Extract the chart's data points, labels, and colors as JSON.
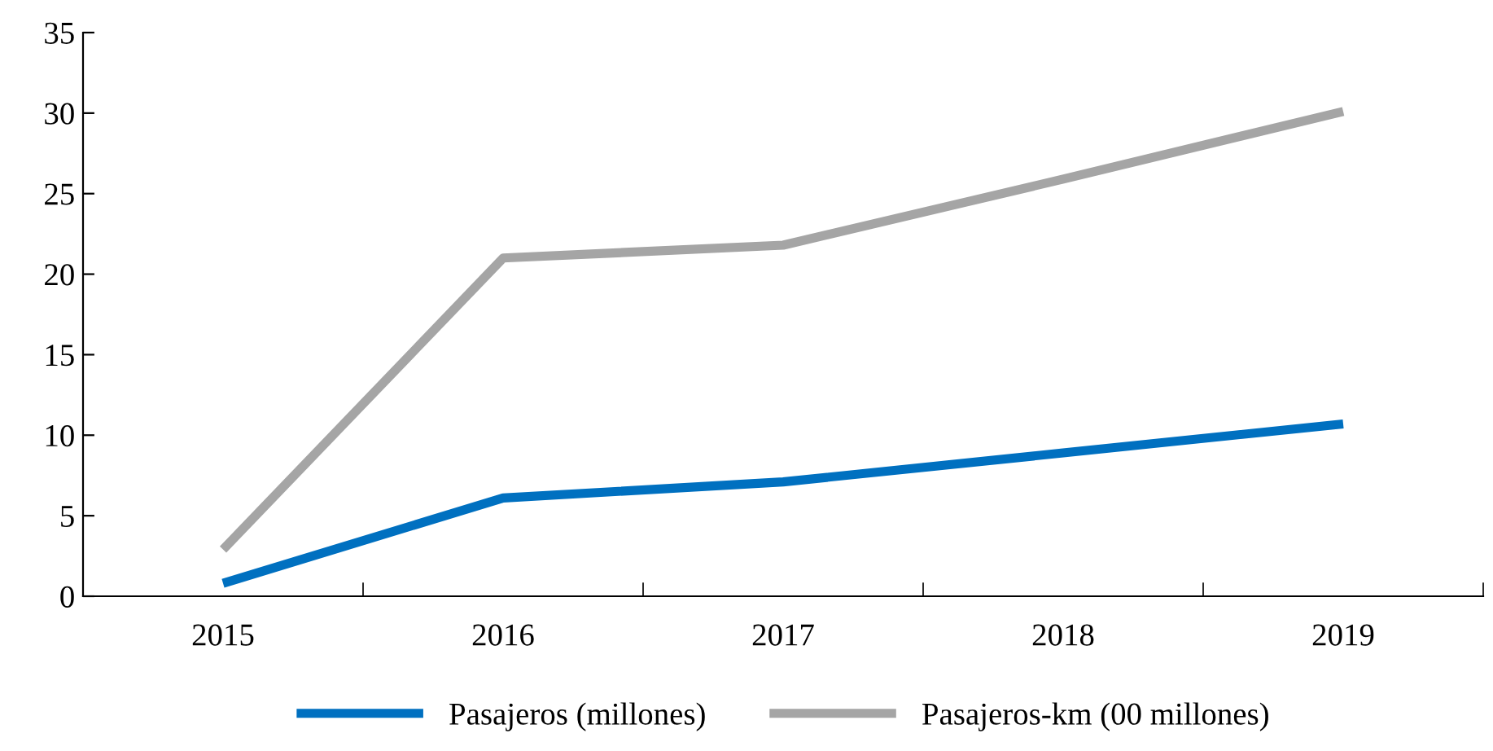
{
  "chart_data": {
    "type": "line",
    "categories": [
      "2015",
      "2016",
      "2017",
      "2018",
      "2019"
    ],
    "series": [
      {
        "name": "Pasajeros (millones)",
        "color": "#0070c0",
        "values": [
          0.8,
          6.1,
          7.1,
          8.9,
          10.7
        ]
      },
      {
        "name": "Pasajeros-km (00 millones)",
        "color": "#a5a5a5",
        "values": [
          2.9,
          21.0,
          21.8,
          25.9,
          30.1
        ]
      }
    ],
    "ylim": [
      0,
      35
    ],
    "yticks": [
      0,
      5,
      10,
      15,
      20,
      25,
      30,
      35
    ],
    "grid": false,
    "legend": "bottom",
    "marker": "none",
    "line_style": "solid"
  }
}
